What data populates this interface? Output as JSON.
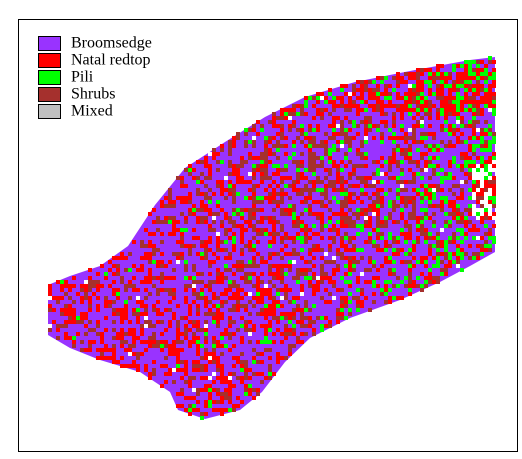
{
  "legend": {
    "items": [
      {
        "label": "Broomsedge",
        "color": "#9933ff"
      },
      {
        "label": "Natal redtop",
        "color": "#ff0000"
      },
      {
        "label": "Pili",
        "color": "#00ff00"
      },
      {
        "label": "Shrubs",
        "color": "#a5302d"
      },
      {
        "label": "Mixed",
        "color": "#c0c0c0"
      }
    ]
  }
}
